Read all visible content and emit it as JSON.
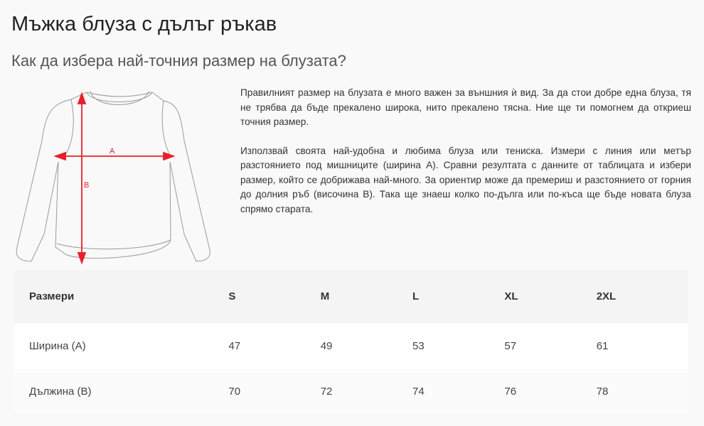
{
  "page": {
    "title": "Мъжка блуза с дълъг ръкав",
    "subtitle": "Как да избера най-точния размер на блузата?"
  },
  "illustration": {
    "label_a": "A",
    "label_b": "B",
    "arrow_color": "#e8202a"
  },
  "description": {
    "paragraphs": [
      "Правилният размер на блузата е много важен за външния ѝ вид. За да стои добре една блуза, тя не трябва да бъде прекалено широка, нито прекалено тясна. Ние ще ти помогнем да откриеш точния размер.",
      "Използвай своята най-удобна и любима блуза или тениска. Измери с линия или метър разстоянието под мишниците (ширина А). Сравни резултата с данните от таблицата и избери размер, който се добрижава най-много. За ориентир може да премериш и разстоянието от горния до долния ръб (височина В). Така ще знаеш колко по-дълга или по-къса ще бъде новата блуза спрямо старата."
    ]
  },
  "size_table": {
    "headers": [
      "Размери",
      "S",
      "M",
      "L",
      "XL",
      "2XL"
    ],
    "rows": [
      [
        "Ширина (А)",
        "47",
        "49",
        "53",
        "57",
        "61"
      ],
      [
        "Дължина (В)",
        "70",
        "72",
        "74",
        "76",
        "78"
      ]
    ]
  }
}
